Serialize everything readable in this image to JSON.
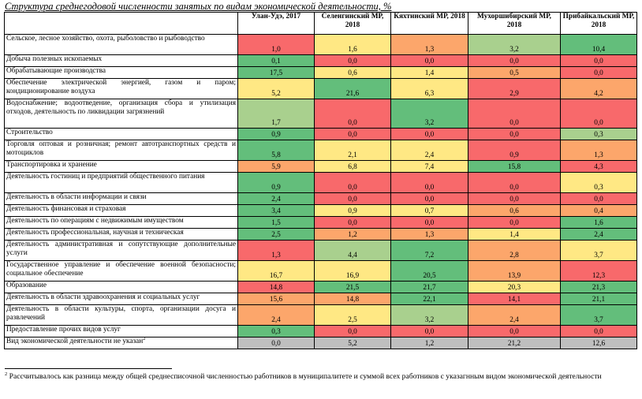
{
  "title": "Структура среднегодовой численности занятых по видам экономической деятельности, %",
  "columns": [
    "Улан-Удэ, 2017",
    "Селенгинский МР, 2018",
    "Кяхтинский МР, 2018",
    "Мухоршибирский МР, 2018",
    "Прибайкальский МР, 2018"
  ],
  "colors": {
    "green": "#63be7b",
    "lgreen": "#a9d08e",
    "yellow": "#ffe884",
    "orange": "#fca66b",
    "red": "#f8696b",
    "gray": "#bfbfbf"
  },
  "rows": [
    {
      "label": "Сельское, лесное хозяйство, охота, рыболовство и рыбоводство",
      "values": [
        "1,0",
        "1,6",
        "1,3",
        "3,2",
        "10,4"
      ],
      "colors": [
        "red",
        "yellow",
        "orange",
        "lgreen",
        "green"
      ]
    },
    {
      "label": "Добыча полезных ископаемых",
      "values": [
        "0,1",
        "0,0",
        "0,0",
        "0,0",
        "0,0"
      ],
      "colors": [
        "green",
        "red",
        "red",
        "red",
        "red"
      ]
    },
    {
      "label": "Обрабатывающие производства",
      "values": [
        "17,5",
        "0,6",
        "1,4",
        "0,5",
        "0,0"
      ],
      "colors": [
        "green",
        "yellow",
        "yellow",
        "orange",
        "red"
      ]
    },
    {
      "label": "Обеспечение электрической энергией, газом и паром; кондиционирование воздуха",
      "values": [
        "5,2",
        "21,6",
        "6,3",
        "2,9",
        "4,2"
      ],
      "colors": [
        "yellow",
        "green",
        "yellow",
        "red",
        "orange"
      ]
    },
    {
      "label": "Водоснабжение; водоотведение, организация сбора и утилизация отходов, деятельность по ликвидации загрязнений",
      "values": [
        "1,7",
        "0,0",
        "3,2",
        "0,0",
        "0,0"
      ],
      "colors": [
        "lgreen",
        "red",
        "green",
        "red",
        "red"
      ]
    },
    {
      "label": "Строительство",
      "values": [
        "0,9",
        "0,0",
        "0,0",
        "0,0",
        "0,3"
      ],
      "colors": [
        "green",
        "red",
        "red",
        "red",
        "lgreen"
      ]
    },
    {
      "label": "Торговля оптовая и розничная; ремонт автотранспортных средств и мотоциклов",
      "values": [
        "5,8",
        "2,1",
        "2,4",
        "0,9",
        "1,3"
      ],
      "colors": [
        "green",
        "yellow",
        "yellow",
        "red",
        "orange"
      ]
    },
    {
      "label": "Транспортировка и хранение",
      "values": [
        "5,9",
        "6,8",
        "7,4",
        "15,8",
        "4,3"
      ],
      "colors": [
        "orange",
        "yellow",
        "yellow",
        "green",
        "red"
      ]
    },
    {
      "label": "Деятельность гостиниц и предприятий общественного питания",
      "values": [
        "0,9",
        "0,0",
        "0,0",
        "0,0",
        "0,3"
      ],
      "colors": [
        "green",
        "red",
        "red",
        "red",
        "yellow"
      ]
    },
    {
      "label": "Деятельность в области информации и связи",
      "values": [
        "2,4",
        "0,0",
        "0,0",
        "0,0",
        "0,0"
      ],
      "colors": [
        "green",
        "red",
        "red",
        "red",
        "red"
      ]
    },
    {
      "label": "Деятельность финансовая и страховая",
      "values": [
        "3,4",
        "0,9",
        "0,7",
        "0,6",
        "0,4"
      ],
      "colors": [
        "green",
        "yellow",
        "yellow",
        "orange",
        "orange"
      ]
    },
    {
      "label": "Деятельность по операциям с недвижимым имуществом",
      "values": [
        "1,5",
        "0,0",
        "0,0",
        "0,0",
        "1,6"
      ],
      "colors": [
        "green",
        "red",
        "red",
        "red",
        "green"
      ]
    },
    {
      "label": "Деятельность профессиональная, научная и техническая",
      "values": [
        "2,5",
        "1,2",
        "1,3",
        "1,4",
        "2,4"
      ],
      "colors": [
        "green",
        "orange",
        "orange",
        "yellow",
        "green"
      ]
    },
    {
      "label": "Деятельность административная и сопутствующие дополнительные услуги",
      "values": [
        "1,3",
        "4,4",
        "7,2",
        "2,8",
        "3,7"
      ],
      "colors": [
        "red",
        "lgreen",
        "green",
        "orange",
        "yellow"
      ]
    },
    {
      "label": "Государственное управление и обеспечение военной безопасности; социальное обеспечение",
      "values": [
        "16,7",
        "16,9",
        "20,5",
        "13,9",
        "12,3"
      ],
      "colors": [
        "yellow",
        "yellow",
        "green",
        "orange",
        "red"
      ]
    },
    {
      "label": "Образование",
      "values": [
        "14,8",
        "21,5",
        "21,7",
        "20,3",
        "21,3"
      ],
      "colors": [
        "red",
        "green",
        "green",
        "yellow",
        "green"
      ]
    },
    {
      "label": "Деятельность в области здравоохранения и социальных услуг",
      "values": [
        "15,6",
        "14,8",
        "22,1",
        "14,1",
        "21,1"
      ],
      "colors": [
        "orange",
        "orange",
        "green",
        "red",
        "green"
      ]
    },
    {
      "label": "Деятельность в области культуры, спорта, организации досуга и развлечений",
      "values": [
        "2,4",
        "2,5",
        "3,2",
        "2,4",
        "3,7"
      ],
      "colors": [
        "orange",
        "yellow",
        "lgreen",
        "orange",
        "green"
      ]
    },
    {
      "label": "Предоставление прочих видов услуг",
      "values": [
        "0,3",
        "0,0",
        "0,0",
        "0,0",
        "0,0"
      ],
      "colors": [
        "green",
        "red",
        "red",
        "red",
        "red"
      ]
    },
    {
      "label": "Вид экономической деятельности не указан",
      "sup": "2",
      "values": [
        "0,0",
        "5,2",
        "1,2",
        "21,2",
        "12,6"
      ],
      "colors": [
        "gray",
        "gray",
        "gray",
        "gray",
        "gray"
      ]
    }
  ],
  "footnote": {
    "marker": "2",
    "text": "Рассчитывалось как разница между общей среднесписочной численностью работников в муниципалитете и суммой всех работников с указагнным видом экономической деятельности"
  }
}
